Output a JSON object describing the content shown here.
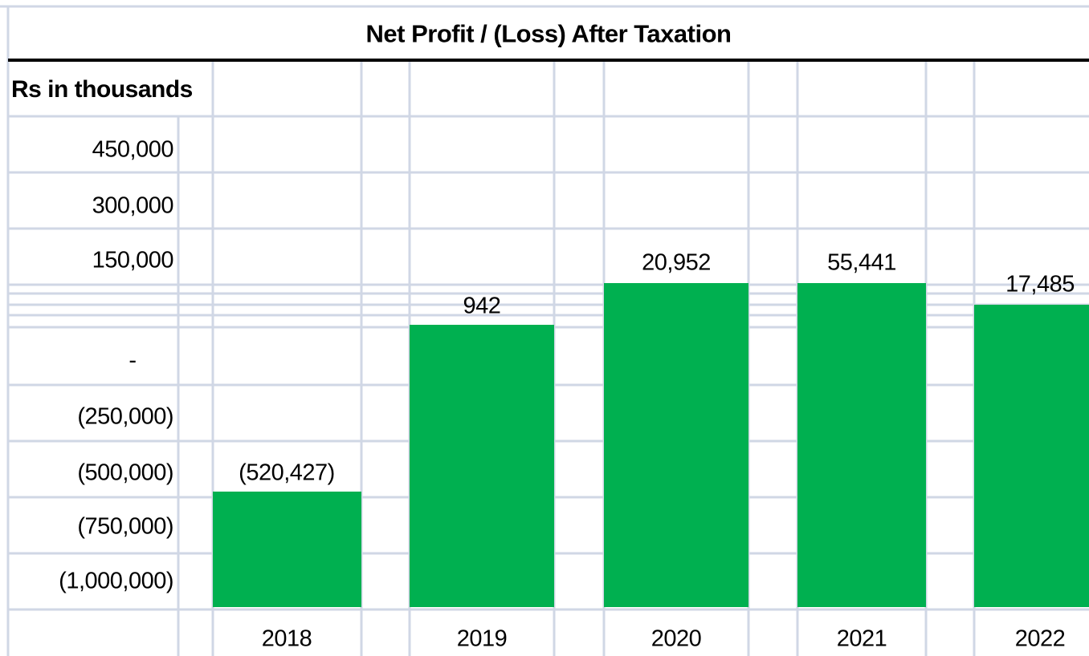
{
  "title": "Net Profit / (Loss) After Taxation",
  "unit_label": "Rs in thousands",
  "axis_labels": [
    "450,000",
    "300,000",
    "150,000",
    "-",
    "(250,000)",
    "(500,000)",
    "(750,000)",
    "(1,000,000)"
  ],
  "columns": [
    {
      "year": "2018",
      "value_label": "(520,427)"
    },
    {
      "year": "2019",
      "value_label": "942"
    },
    {
      "year": "2020",
      "value_label": "20,952"
    },
    {
      "year": "2021",
      "value_label": "55,441"
    },
    {
      "year": "2022",
      "value_label": "17,485"
    }
  ]
}
